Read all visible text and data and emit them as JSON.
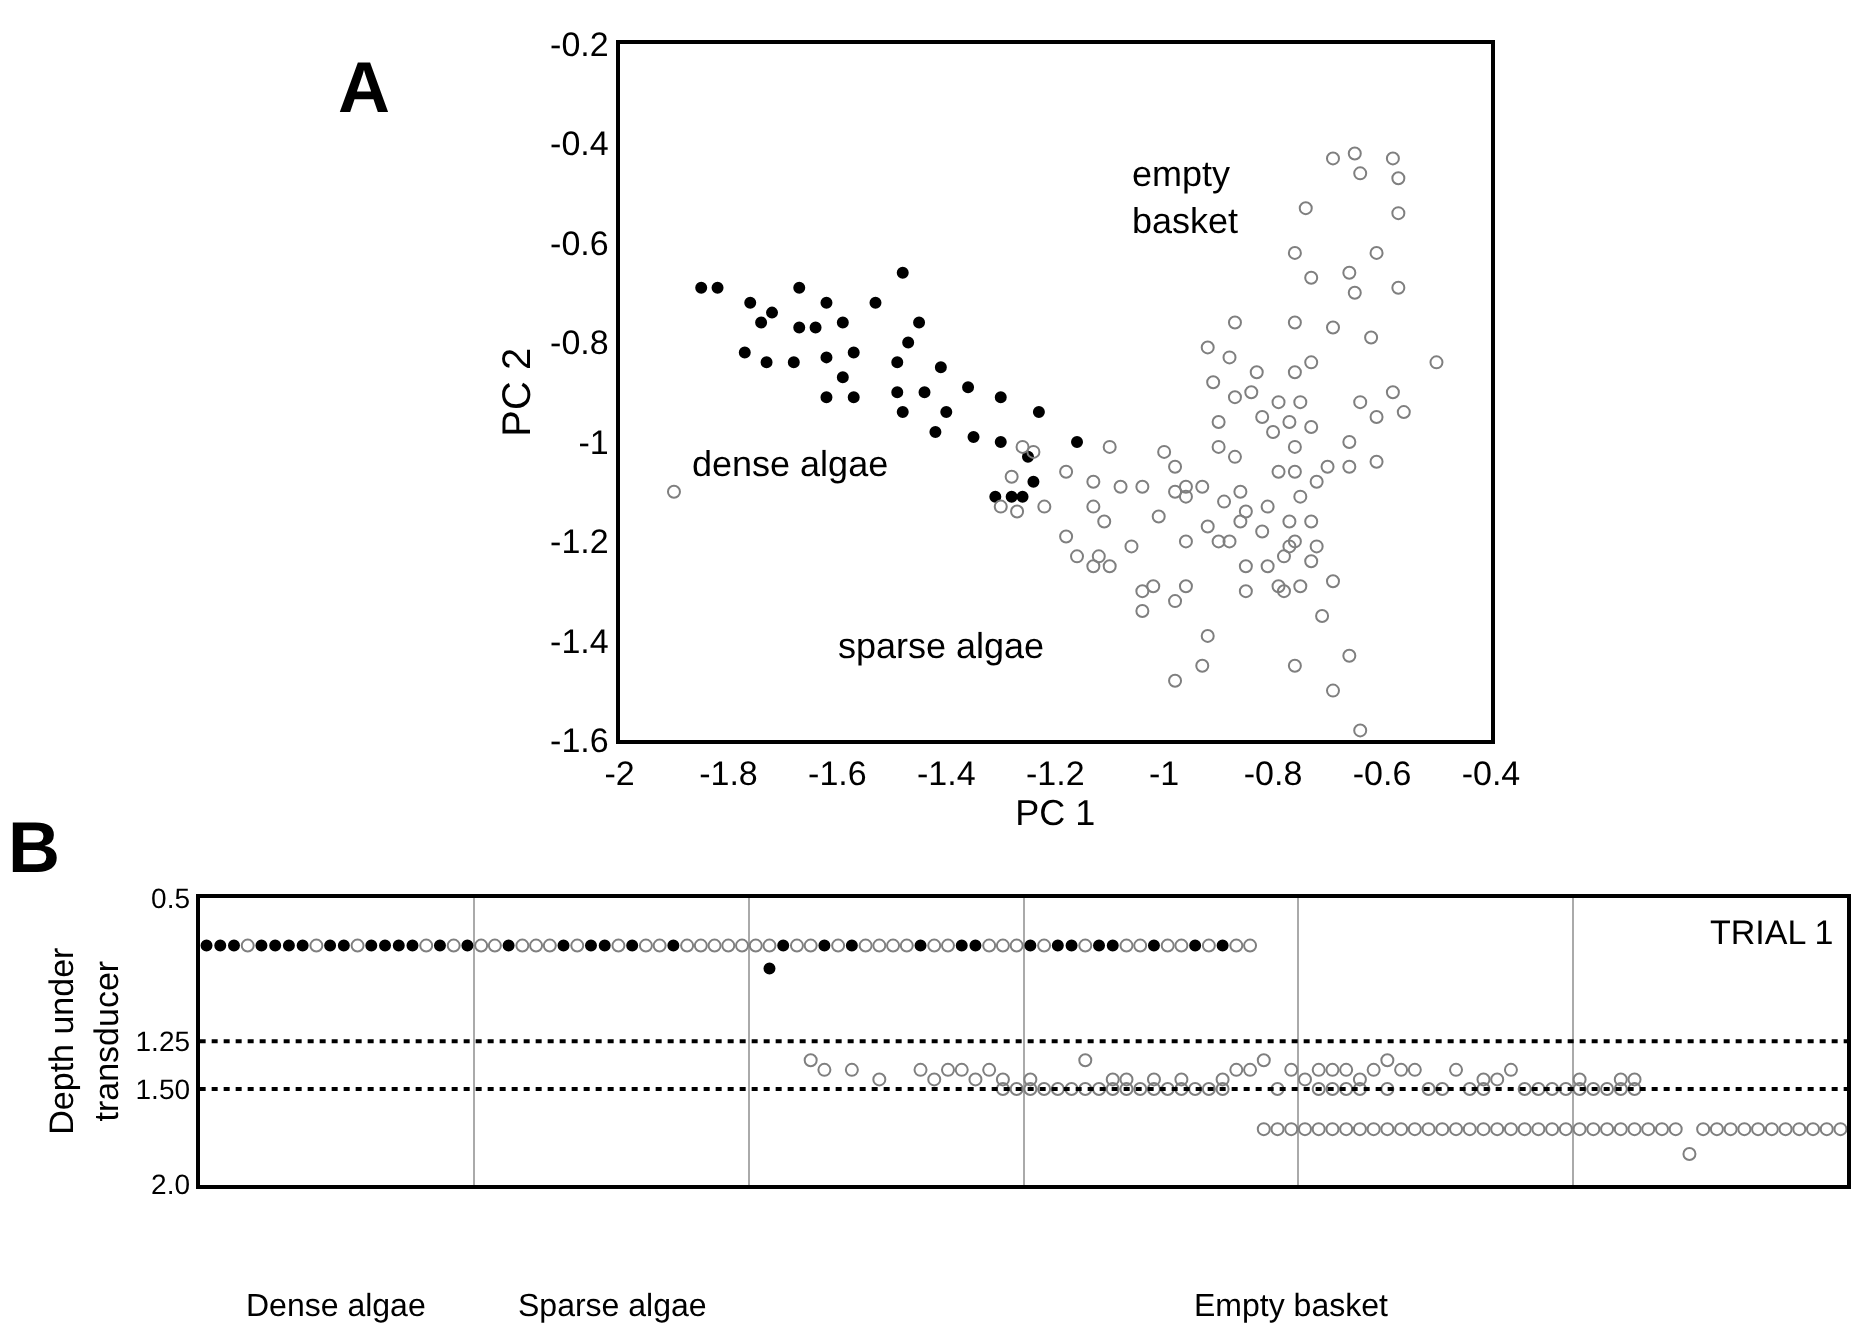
{
  "chart_data": [
    {
      "type": "scatter",
      "xlabel": "PC 1",
      "ylabel": "PC 2",
      "xlim": [
        -2,
        -0.4
      ],
      "ylim": [
        -1.6,
        -0.2
      ],
      "xticks": [
        -2,
        -1.8,
        -1.6,
        -1.4,
        -1.2,
        -1,
        -0.8,
        -0.6,
        -0.4
      ],
      "yticks": [
        -1.6,
        -1.4,
        -1.2,
        -1,
        -0.8,
        -0.6,
        -0.4,
        -0.2
      ],
      "annotations": [
        "A",
        "empty\nbasket",
        "dense algae",
        "sparse algae"
      ],
      "series": [
        {
          "color": "#000000",
          "marker": "circle",
          "x": [
            -1.85,
            -1.82,
            -1.76,
            -1.72,
            -1.74,
            -1.67,
            -1.62,
            -1.67,
            -1.64,
            -1.59,
            -1.53,
            -1.48,
            -1.45,
            -1.47,
            -1.77,
            -1.73,
            -1.68,
            -1.62,
            -1.57,
            -1.59,
            -1.49,
            -1.41,
            -1.62,
            -1.57,
            -1.49,
            -1.44,
            -1.36,
            -1.3,
            -1.48,
            -1.4,
            -1.23,
            -1.42,
            -1.35,
            -1.3,
            -1.16,
            -1.25,
            -1.24,
            -1.31,
            -1.28,
            -1.26
          ],
          "values": [
            -0.69,
            -0.69,
            -0.72,
            -0.74,
            -0.76,
            -0.69,
            -0.72,
            -0.77,
            -0.77,
            -0.76,
            -0.72,
            -0.66,
            -0.76,
            -0.8,
            -0.82,
            -0.84,
            -0.84,
            -0.83,
            -0.82,
            -0.87,
            -0.84,
            -0.85,
            -0.91,
            -0.91,
            -0.9,
            -0.9,
            -0.89,
            -0.91,
            -0.94,
            -0.94,
            -0.94,
            -0.98,
            -0.99,
            -1.0,
            -1.0,
            -1.03,
            -1.08,
            -1.11,
            -1.11,
            -1.11
          ]
        },
        {
          "color": "#7f7f7f",
          "marker": "circle-open",
          "x": [
            -1.9,
            -1.26,
            -1.24,
            -1.28,
            -1.3,
            -1.27,
            -1.22,
            -1.18,
            -1.13,
            -1.1,
            -1.13,
            -1.11,
            -1.18,
            -1.16,
            -1.13,
            -1.12,
            -1.1,
            -0.69,
            -0.65,
            -0.64,
            -0.58,
            -0.57,
            -0.74,
            -0.57,
            -0.76,
            -0.61,
            -0.73,
            -0.66,
            -0.65,
            -0.57,
            -0.87,
            -0.76,
            -0.69,
            -0.62,
            -0.5,
            -0.92,
            -0.88,
            -0.83,
            -0.76,
            -0.73,
            -0.91,
            -0.87,
            -0.84,
            -0.79,
            -0.75,
            -0.82,
            -0.77,
            -0.73,
            -0.8,
            -0.64,
            -0.58,
            -0.61,
            -0.56,
            -0.9,
            -0.66,
            -0.76,
            -0.9,
            -0.87,
            -1.0,
            -0.98,
            -0.79,
            -0.76,
            -0.7,
            -0.66,
            -0.61,
            -0.72,
            -0.75,
            -1.08,
            -1.04,
            -0.98,
            -0.96,
            -0.93,
            -0.96,
            -1.01,
            -0.89,
            -0.86,
            -1.06,
            -0.96,
            -0.92,
            -0.9,
            -0.88,
            -0.85,
            -0.86,
            -0.82,
            -0.81,
            -0.77,
            -0.73,
            -0.76,
            -0.77,
            -0.72,
            -0.85,
            -0.81,
            -0.78,
            -0.73,
            -1.04,
            -1.02,
            -0.98,
            -0.96,
            -1.04,
            -0.85,
            -0.79,
            -0.78,
            -0.75,
            -0.69,
            -0.71,
            -0.92,
            -0.93,
            -0.98,
            -0.76,
            -0.66,
            -0.69,
            -0.64
          ],
          "values": [
            -1.1,
            -1.01,
            -1.02,
            -1.07,
            -1.13,
            -1.14,
            -1.13,
            -1.06,
            -1.08,
            -1.01,
            -1.13,
            -1.16,
            -1.19,
            -1.23,
            -1.25,
            -1.23,
            -1.25,
            -0.43,
            -0.42,
            -0.46,
            -0.43,
            -0.47,
            -0.53,
            -0.54,
            -0.62,
            -0.62,
            -0.67,
            -0.66,
            -0.7,
            -0.69,
            -0.76,
            -0.76,
            -0.77,
            -0.79,
            -0.84,
            -0.81,
            -0.83,
            -0.86,
            -0.86,
            -0.84,
            -0.88,
            -0.91,
            -0.9,
            -0.92,
            -0.92,
            -0.95,
            -0.96,
            -0.97,
            -0.98,
            -0.92,
            -0.9,
            -0.95,
            -0.94,
            -0.96,
            -1.0,
            -1.01,
            -1.01,
            -1.03,
            -1.02,
            -1.05,
            -1.06,
            -1.06,
            -1.05,
            -1.05,
            -1.04,
            -1.08,
            -1.11,
            -1.09,
            -1.09,
            -1.1,
            -1.09,
            -1.09,
            -1.11,
            -1.15,
            -1.12,
            -1.1,
            -1.21,
            -1.2,
            -1.17,
            -1.2,
            -1.2,
            -1.14,
            -1.16,
            -1.18,
            -1.13,
            -1.16,
            -1.16,
            -1.2,
            -1.21,
            -1.21,
            -1.25,
            -1.25,
            -1.23,
            -1.24,
            -1.3,
            -1.29,
            -1.32,
            -1.29,
            -1.34,
            -1.3,
            -1.29,
            -1.3,
            -1.29,
            -1.28,
            -1.35,
            -1.39,
            -1.45,
            -1.48,
            -1.45,
            -1.43,
            -1.5,
            -1.58
          ]
        }
      ]
    },
    {
      "type": "scatter",
      "ylabel": "Depth under\ntransducer",
      "ylim": [
        2.0,
        0.5
      ],
      "yticks": [
        0.5,
        {
          "value": 1.25,
          "label": "1.25"
        },
        {
          "value": 1.5,
          "label": "1.50"
        },
        {
          "value": 2.0,
          "label": "2.0"
        }
      ],
      "grid": "x",
      "ref_lines": [
        {
          "axis": "y",
          "value": 1.25,
          "line_style": "dotted",
          "color": "#000000"
        },
        {
          "axis": "y",
          "value": 1.5,
          "line_style": "dotted",
          "color": "#000000"
        }
      ],
      "annotations": [
        "B",
        "TRIAL 1",
        "Dense algae",
        "Sparse algae",
        "Empty basket"
      ],
      "categories": [
        null,
        null,
        null,
        null,
        null,
        null,
        null,
        null,
        null,
        null,
        null,
        null,
        null,
        null,
        null,
        null,
        null,
        null,
        null,
        null,
        null,
        null,
        null,
        null,
        null,
        null,
        null,
        null,
        null,
        null,
        null,
        null,
        null,
        null,
        null,
        null,
        null,
        null,
        null,
        null,
        null,
        null,
        null,
        null,
        null,
        null,
        null,
        null,
        null,
        null,
        null,
        null,
        null,
        null,
        null,
        null,
        null,
        null,
        null,
        null,
        null,
        null,
        null,
        null,
        null,
        null,
        null,
        null,
        null,
        null,
        null,
        null,
        null,
        null,
        null,
        null,
        null,
        null,
        null,
        null,
        null,
        null,
        null,
        null,
        null,
        null,
        null,
        null,
        null,
        null,
        null,
        null,
        null,
        null,
        null,
        null,
        null,
        null,
        null,
        null,
        null,
        null,
        null,
        null,
        null,
        null,
        null,
        null,
        null,
        null,
        null,
        null,
        null,
        null,
        null,
        null,
        null,
        null,
        null,
        null
      ],
      "series": [
        {
          "color": "#000000",
          "marker": "circle",
          "values": [
            0.75,
            0.75,
            0.75,
            null,
            0.75,
            0.75,
            0.75,
            0.75,
            null,
            0.75,
            0.75,
            null,
            0.75,
            0.75,
            0.75,
            0.75,
            null,
            0.75,
            null,
            0.75,
            null,
            null,
            0.75,
            null,
            null,
            null,
            0.75,
            null,
            0.75,
            0.75,
            null,
            0.75,
            null,
            null,
            0.75,
            null,
            null,
            null,
            null,
            null,
            null,
            0.87,
            0.75,
            null,
            null,
            0.75,
            null,
            0.75,
            null,
            null,
            null,
            null,
            0.75,
            null,
            null,
            0.75,
            0.75,
            null,
            null,
            null,
            0.75,
            null,
            0.75,
            0.75,
            null,
            0.75,
            0.75,
            null,
            null,
            0.75,
            null,
            null,
            0.75,
            null,
            0.75,
            null,
            null,
            null,
            null,
            null,
            null,
            null,
            null,
            null,
            null,
            null,
            null,
            null,
            null,
            null,
            null,
            null,
            null,
            null,
            null,
            null,
            null,
            null,
            null,
            null,
            null,
            null,
            null,
            null,
            null,
            null,
            null,
            null,
            null,
            null,
            null,
            null,
            null,
            null,
            null,
            null,
            null,
            null,
            null,
            null
          ]
        },
        {
          "color": "#7f7f7f",
          "marker": "circle-open",
          "values": [
            null,
            null,
            null,
            0.75,
            null,
            null,
            null,
            null,
            0.75,
            null,
            null,
            0.75,
            null,
            null,
            null,
            null,
            0.75,
            null,
            0.75,
            null,
            0.75,
            0.75,
            null,
            0.75,
            0.75,
            0.75,
            null,
            0.75,
            null,
            null,
            0.75,
            null,
            0.75,
            0.75,
            null,
            0.75,
            0.75,
            0.75,
            0.75,
            0.75,
            0.75,
            0.75,
            null,
            0.75,
            0.75,
            null,
            0.75,
            null,
            0.75,
            0.75,
            0.75,
            0.75,
            null,
            0.75,
            0.75,
            null,
            null,
            0.75,
            0.75,
            0.75,
            null,
            0.75,
            null,
            null,
            0.75,
            null,
            null,
            0.75,
            0.75,
            null,
            0.75,
            0.75,
            null,
            0.75,
            null,
            0.75,
            0.75,
            null,
            null,
            null,
            null,
            null,
            null,
            null,
            null,
            null,
            null,
            null,
            null,
            null,
            null,
            null,
            null,
            null,
            null,
            null,
            null,
            null,
            null,
            null,
            null,
            null,
            null,
            null,
            null,
            null,
            null,
            null,
            null,
            null,
            null,
            null,
            null,
            null,
            null,
            null,
            null,
            null,
            null,
            null
          ]
        },
        {
          "color": "#7f7f7f",
          "marker": "circle-open",
          "values": [
            null,
            null,
            null,
            null,
            null,
            null,
            null,
            null,
            null,
            null,
            null,
            null,
            null,
            null,
            null,
            null,
            null,
            null,
            null,
            null,
            null,
            null,
            null,
            null,
            null,
            null,
            null,
            null,
            null,
            null,
            null,
            null,
            null,
            null,
            null,
            null,
            null,
            null,
            null,
            null,
            null,
            null,
            null,
            null,
            1.35,
            1.4,
            null,
            1.4,
            null,
            1.45,
            null,
            null,
            1.4,
            1.45,
            1.4,
            1.4,
            1.45,
            1.4,
            1.45,
            null,
            1.45,
            null,
            null,
            null,
            1.35,
            null,
            1.45,
            1.45,
            null,
            1.45,
            null,
            1.45,
            null,
            null,
            1.45,
            1.4,
            1.4,
            1.35,
            null,
            1.4,
            1.45,
            1.4,
            1.4,
            1.4,
            1.45,
            1.4,
            1.35,
            1.4,
            1.4,
            null,
            null,
            1.4,
            null,
            1.45,
            1.45,
            1.4,
            null,
            null,
            null,
            null,
            1.45,
            null,
            null,
            1.45,
            1.45,
            null,
            null,
            null,
            null,
            null,
            null,
            null,
            null,
            null,
            null,
            null,
            null,
            null,
            null,
            null
          ]
        },
        {
          "color": "#7f7f7f",
          "marker": "circle-open",
          "values": [
            null,
            null,
            null,
            null,
            null,
            null,
            null,
            null,
            null,
            null,
            null,
            null,
            null,
            null,
            null,
            null,
            null,
            null,
            null,
            null,
            null,
            null,
            null,
            null,
            null,
            null,
            null,
            null,
            null,
            null,
            null,
            null,
            null,
            null,
            null,
            null,
            null,
            null,
            null,
            null,
            null,
            null,
            null,
            null,
            null,
            null,
            null,
            null,
            null,
            null,
            null,
            null,
            null,
            null,
            null,
            null,
            null,
            null,
            1.5,
            1.5,
            1.5,
            1.5,
            1.5,
            1.5,
            1.5,
            1.5,
            1.5,
            1.5,
            1.5,
            1.5,
            1.5,
            1.5,
            1.5,
            1.5,
            1.5,
            null,
            null,
            null,
            1.5,
            null,
            null,
            1.5,
            1.5,
            1.5,
            1.5,
            null,
            1.5,
            null,
            null,
            1.5,
            1.5,
            null,
            1.5,
            1.5,
            null,
            null,
            1.5,
            1.5,
            1.5,
            1.5,
            1.5,
            1.5,
            1.5,
            1.5,
            1.5,
            null,
            null,
            null,
            null,
            null,
            null,
            null,
            null,
            null,
            null,
            null,
            null,
            null,
            null,
            null
          ]
        },
        {
          "color": "#7f7f7f",
          "marker": "circle-open",
          "values": [
            null,
            null,
            null,
            null,
            null,
            null,
            null,
            null,
            null,
            null,
            null,
            null,
            null,
            null,
            null,
            null,
            null,
            null,
            null,
            null,
            null,
            null,
            null,
            null,
            null,
            null,
            null,
            null,
            null,
            null,
            null,
            null,
            null,
            null,
            null,
            null,
            null,
            null,
            null,
            null,
            null,
            null,
            null,
            null,
            null,
            null,
            null,
            null,
            null,
            null,
            null,
            null,
            null,
            null,
            null,
            null,
            null,
            null,
            null,
            null,
            null,
            null,
            null,
            null,
            null,
            null,
            null,
            null,
            null,
            null,
            null,
            null,
            null,
            null,
            null,
            null,
            null,
            1.71,
            1.71,
            1.71,
            1.71,
            1.71,
            1.71,
            1.71,
            1.71,
            1.71,
            1.71,
            1.71,
            1.71,
            1.71,
            1.71,
            1.71,
            1.71,
            1.71,
            1.71,
            1.71,
            1.71,
            1.71,
            1.71,
            1.71,
            1.71,
            1.71,
            1.71,
            1.71,
            1.71,
            1.71,
            1.71,
            1.71,
            1.84,
            1.71,
            1.71,
            1.71,
            1.71,
            1.71,
            1.71,
            1.71,
            1.71,
            1.71,
            1.71,
            1.71
          ]
        }
      ]
    }
  ]
}
